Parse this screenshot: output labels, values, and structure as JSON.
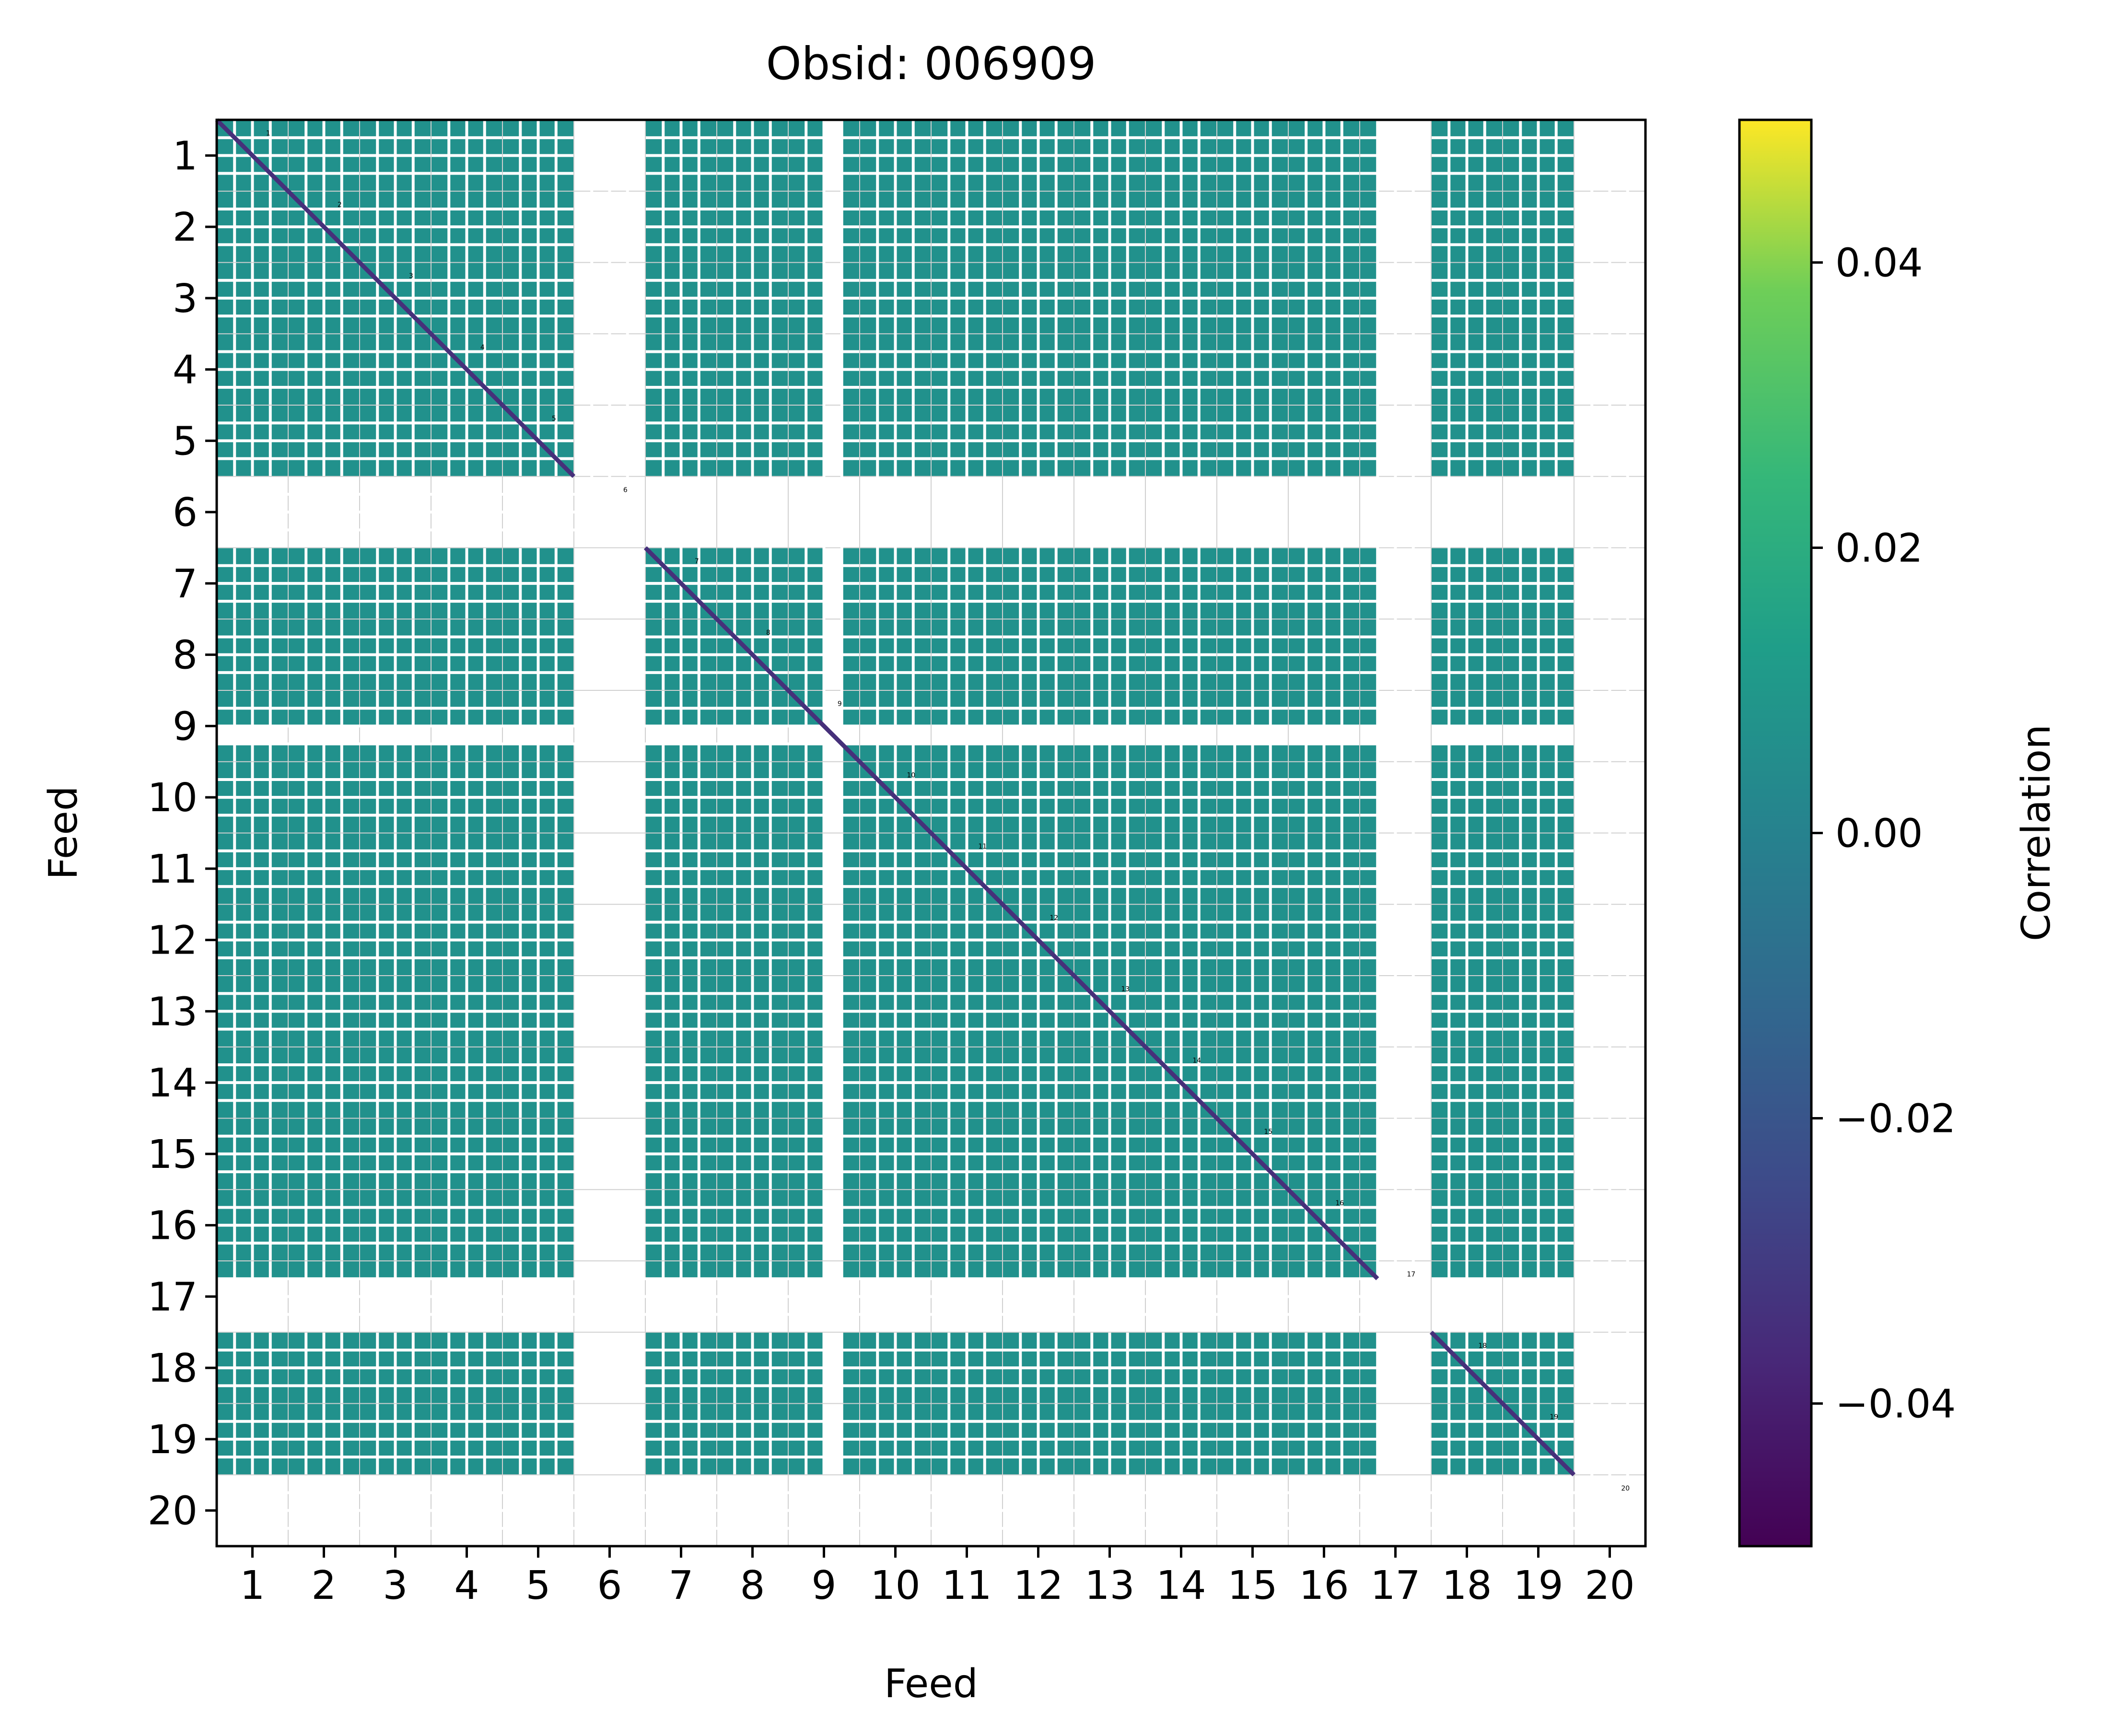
{
  "chart_data": {
    "type": "heatmap",
    "title": "Obsid: 006909",
    "xlabel": "Feed",
    "ylabel": "Feed",
    "x_ticks": [
      "1",
      "2",
      "3",
      "4",
      "5",
      "6",
      "7",
      "8",
      "9",
      "10",
      "11",
      "12",
      "13",
      "14",
      "15",
      "16",
      "17",
      "18",
      "19",
      "20"
    ],
    "y_ticks": [
      "1",
      "2",
      "3",
      "4",
      "5",
      "6",
      "7",
      "8",
      "9",
      "10",
      "11",
      "12",
      "13",
      "14",
      "15",
      "16",
      "17",
      "18",
      "19",
      "20"
    ],
    "feed_annotations": [
      "1",
      "2",
      "3",
      "4",
      "5",
      "6",
      "7",
      "8",
      "9",
      "10",
      "11",
      "12",
      "13",
      "14",
      "15",
      "16",
      "17",
      "18",
      "19",
      "20"
    ],
    "colorbar": {
      "label": "Correlation",
      "vmin": -0.05,
      "vmax": 0.05,
      "ticks": [
        -0.04,
        -0.02,
        0.0,
        0.02,
        0.04
      ],
      "tick_labels": [
        "−0.04",
        "−0.02",
        "0.00",
        "0.02",
        "0.04"
      ],
      "colormap": "viridis"
    },
    "feeds_total": 20,
    "sidebands_per_feed": 4,
    "missing_feeds": [
      6,
      20
    ],
    "partially_missing_bands": {
      "9": [
        2
      ],
      "17": [
        1,
        2,
        3
      ]
    },
    "offdiagonal_value": 0.0,
    "diagonal_value": -0.045
  },
  "colors": {
    "data_fill": "#21918c",
    "diagonal": "#46307a",
    "grid_line": "#ffffff",
    "minor_grid": "#d0d0d0",
    "axes": "#000000"
  }
}
